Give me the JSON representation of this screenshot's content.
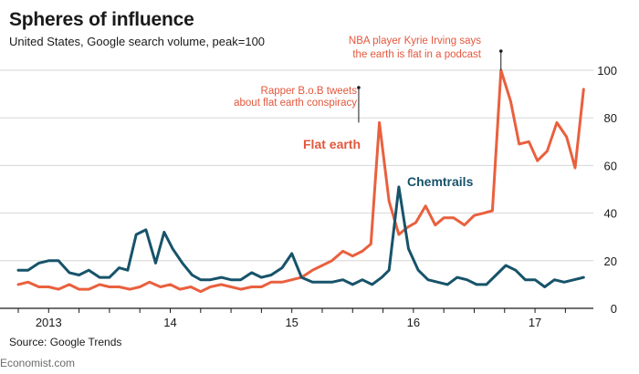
{
  "title": "Spheres of influence",
  "subtitle": "United States, Google search volume, peak=100",
  "source": "Source: Google Trends",
  "credit": "Economist.com",
  "colors": {
    "flat_earth": "#e9603e",
    "chemtrails": "#17536a",
    "grid": "#d6d6d6",
    "axis": "#1a1a1a"
  },
  "chart_data": {
    "type": "line",
    "title": "Spheres of influence",
    "subtitle": "United States, Google search volume, peak=100",
    "xlabel": "",
    "ylabel": "",
    "ylim": [
      0,
      100
    ],
    "yticks": [
      0,
      20,
      40,
      60,
      80,
      100
    ],
    "grid": true,
    "x_start": 2012.75,
    "x_end": 2017.45,
    "x_tick_labels": [
      {
        "label": "2013",
        "x": 2013.0
      },
      {
        "label": "14",
        "x": 2014.0
      },
      {
        "label": "15",
        "x": 2015.0
      },
      {
        "label": "16",
        "x": 2016.0
      },
      {
        "label": "17",
        "x": 2017.0
      }
    ],
    "series": [
      {
        "name": "Flat earth",
        "key": "flat_earth",
        "x": [
          2012.75,
          2012.83,
          2012.92,
          2013.0,
          2013.08,
          2013.17,
          2013.25,
          2013.33,
          2013.42,
          2013.5,
          2013.58,
          2013.67,
          2013.75,
          2013.83,
          2013.92,
          2014.0,
          2014.08,
          2014.17,
          2014.25,
          2014.33,
          2014.42,
          2014.5,
          2014.58,
          2014.67,
          2014.75,
          2014.83,
          2014.92,
          2015.0,
          2015.08,
          2015.17,
          2015.25,
          2015.33,
          2015.42,
          2015.5,
          2015.58,
          2015.65,
          2015.72,
          2015.8,
          2015.88,
          2015.95,
          2016.02,
          2016.1,
          2016.18,
          2016.25,
          2016.33,
          2016.42,
          2016.5,
          2016.58,
          2016.65,
          2016.72,
          2016.8,
          2016.87,
          2016.95,
          2017.02,
          2017.1,
          2017.18,
          2017.26,
          2017.33,
          2017.4
        ],
        "values": [
          10,
          11,
          9,
          9,
          8,
          10,
          8,
          8,
          10,
          9,
          9,
          8,
          9,
          11,
          9,
          10,
          8,
          9,
          7,
          9,
          10,
          9,
          8,
          9,
          9,
          11,
          11,
          12,
          13,
          16,
          18,
          20,
          24,
          22,
          24,
          27,
          78,
          45,
          31,
          34,
          36,
          43,
          35,
          38,
          38,
          35,
          39,
          40,
          41,
          100,
          87,
          69,
          70,
          62,
          66,
          78,
          72,
          59,
          92
        ]
      },
      {
        "name": "Chemtrails",
        "key": "chemtrails",
        "x": [
          2012.75,
          2012.83,
          2012.92,
          2013.0,
          2013.08,
          2013.17,
          2013.25,
          2013.33,
          2013.42,
          2013.5,
          2013.58,
          2013.65,
          2013.72,
          2013.8,
          2013.88,
          2013.95,
          2014.02,
          2014.1,
          2014.18,
          2014.25,
          2014.33,
          2014.42,
          2014.5,
          2014.58,
          2014.67,
          2014.75,
          2014.83,
          2014.92,
          2015.0,
          2015.08,
          2015.17,
          2015.25,
          2015.33,
          2015.42,
          2015.5,
          2015.58,
          2015.66,
          2015.74,
          2015.8,
          2015.88,
          2015.96,
          2016.04,
          2016.12,
          2016.2,
          2016.28,
          2016.36,
          2016.44,
          2016.52,
          2016.6,
          2016.68,
          2016.76,
          2016.84,
          2016.92,
          2017.0,
          2017.08,
          2017.16,
          2017.24,
          2017.32,
          2017.4
        ],
        "values": [
          16,
          16,
          19,
          20,
          20,
          15,
          14,
          16,
          13,
          13,
          17,
          16,
          31,
          33,
          19,
          32,
          25,
          19,
          14,
          12,
          12,
          13,
          12,
          12,
          15,
          13,
          14,
          17,
          23,
          13,
          11,
          11,
          11,
          12,
          10,
          12,
          10,
          13,
          16,
          51,
          25,
          16,
          12,
          11,
          10,
          13,
          12,
          10,
          10,
          14,
          18,
          16,
          12,
          12,
          9,
          12,
          11,
          12,
          13
        ]
      }
    ],
    "series_labels": [
      {
        "text": "Flat earth",
        "series": "flat_earth"
      },
      {
        "text": "Chemtrails",
        "series": "chemtrails"
      }
    ],
    "annotations": [
      {
        "lines": [
          "Rapper B.o.B tweets",
          "about flat earth conspiracy"
        ],
        "x": 2015.55,
        "y": 78
      },
      {
        "lines": [
          "NBA player Kyrie Irving says",
          "the earth is flat in a podcast"
        ],
        "x": 2016.72,
        "y": 100
      }
    ]
  }
}
